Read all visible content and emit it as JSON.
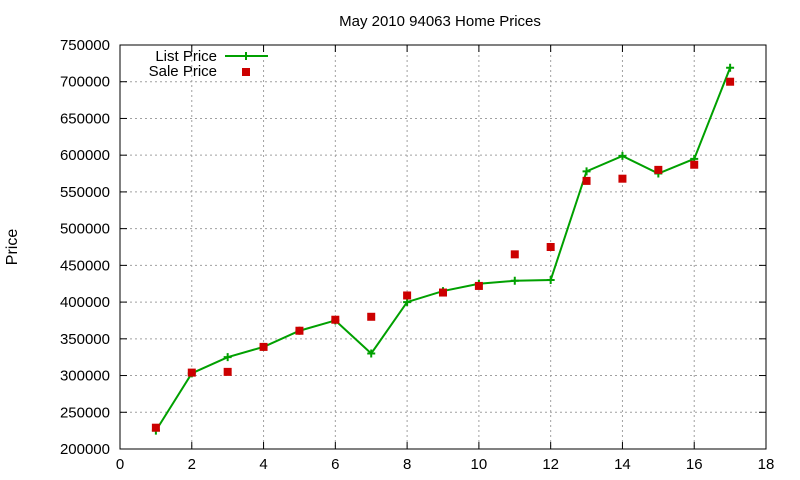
{
  "chart_data": {
    "type": "line",
    "title": "May 2010 94063 Home Prices",
    "xlabel": "",
    "ylabel": "Price",
    "xlim": [
      0,
      18
    ],
    "ylim": [
      200000,
      750000
    ],
    "x_ticks": [
      0,
      2,
      4,
      6,
      8,
      10,
      12,
      14,
      16,
      18
    ],
    "y_ticks": [
      200000,
      250000,
      300000,
      350000,
      400000,
      450000,
      500000,
      550000,
      600000,
      650000,
      700000,
      750000
    ],
    "grid": true,
    "legend_position": "top-left",
    "x": [
      1,
      2,
      3,
      4,
      5,
      6,
      7,
      8,
      9,
      10,
      11,
      12,
      13,
      14,
      15,
      16,
      17
    ],
    "series": [
      {
        "name": "List Price",
        "style": "line-with-plus-markers",
        "color": "#00a000",
        "values": [
          225000,
          303000,
          325000,
          339000,
          361000,
          375000,
          330000,
          400000,
          415000,
          425000,
          429000,
          430000,
          578000,
          599000,
          575000,
          595000,
          719000
        ]
      },
      {
        "name": "Sale Price",
        "style": "square-markers",
        "color": "#cc0000",
        "values": [
          229000,
          304000,
          305000,
          339000,
          361000,
          376000,
          380000,
          409000,
          413000,
          422000,
          465000,
          475000,
          565000,
          568000,
          580000,
          587000,
          700000
        ]
      }
    ]
  }
}
